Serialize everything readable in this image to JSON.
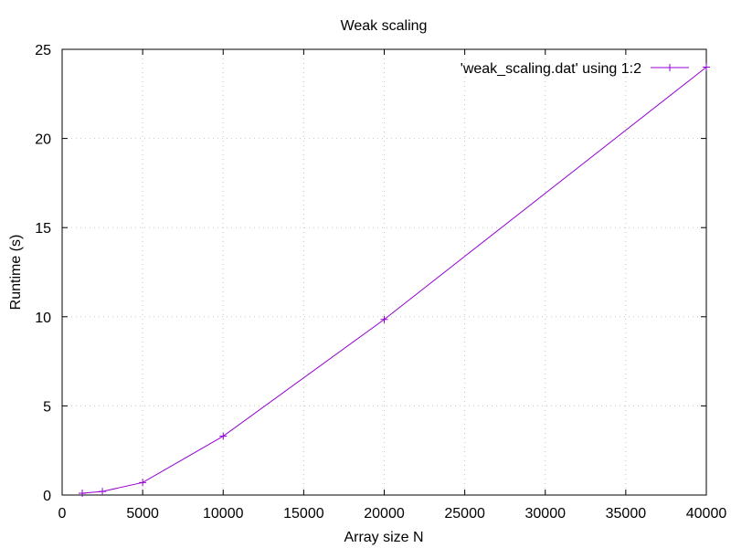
{
  "chart_data": {
    "type": "line",
    "title": "Weak scaling",
    "xlabel": "Array size N",
    "ylabel": "Runtime (s)",
    "xlim": [
      0,
      40000
    ],
    "ylim": [
      0,
      25
    ],
    "x_ticks": [
      0,
      5000,
      10000,
      15000,
      20000,
      25000,
      30000,
      35000,
      40000
    ],
    "y_ticks": [
      0,
      5,
      10,
      15,
      20,
      25
    ],
    "grid": true,
    "legend_position": "top-right",
    "series": [
      {
        "name": "'weak_scaling.dat' using 1:2",
        "color": "#9400d3",
        "marker": "plus",
        "x": [
          1250,
          2500,
          5000,
          10000,
          20000,
          40000
        ],
        "y": [
          0.1,
          0.2,
          0.7,
          3.3,
          9.85,
          24.0
        ]
      }
    ]
  }
}
